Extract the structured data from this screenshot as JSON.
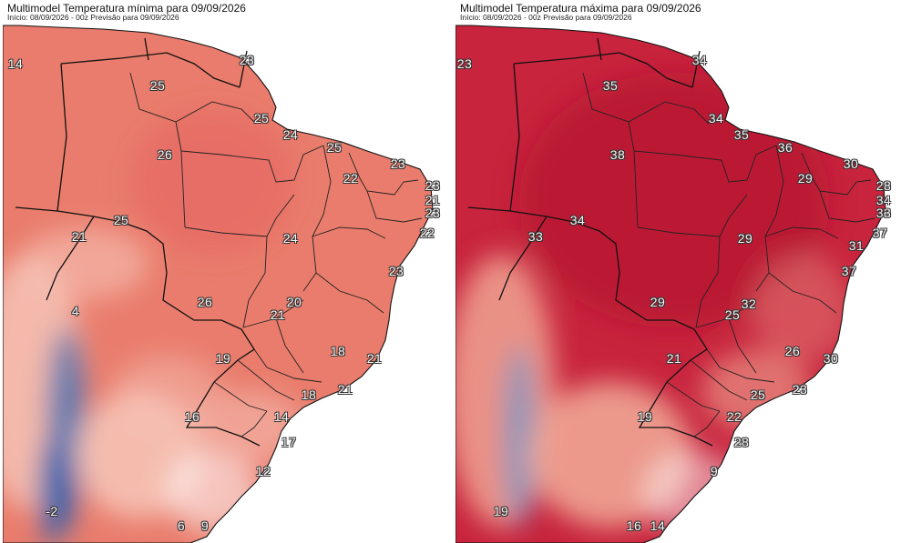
{
  "panels": [
    {
      "id": "minima",
      "title": "Multimodel Temperatura mínima para 09/09/2026",
      "subtitle": "Início: 08/09/2026 - 00z  Previsão para 09/09/2026",
      "colors": {
        "land": "#e97c6c",
        "hot": "#e2575a",
        "cold": "#2a62b0",
        "mild": "#f6c3b6",
        "ocean": "#ffffff"
      },
      "labels": [
        "14",
        "23",
        "25",
        "25",
        "24",
        "25",
        "26",
        "22",
        "23",
        "23",
        "21",
        "23",
        "22",
        "25",
        "21",
        "24",
        "23",
        "26",
        "20",
        "21",
        "18",
        "19",
        "21",
        "18",
        "21",
        "16",
        "14",
        "17",
        "12",
        "-2",
        "6",
        "9",
        "4"
      ]
    },
    {
      "id": "maxima",
      "title": "Multimodel Temperatura máxima para 09/09/2026",
      "subtitle": "Início: 08/09/2026 - 00z  Previsão para 09/09/2026",
      "colors": {
        "land": "#c8243d",
        "hot": "#b3132f",
        "cold": "#6a98cf",
        "mild": "#f0a593",
        "ocean": "#ffffff"
      },
      "labels": [
        "23",
        "34",
        "35",
        "33",
        "34",
        "34",
        "35",
        "36",
        "38",
        "30",
        "29",
        "28",
        "34",
        "33",
        "37",
        "31",
        "29",
        "37",
        "29",
        "32",
        "25",
        "26",
        "30",
        "21",
        "25",
        "23",
        "22",
        "28",
        "19",
        "9",
        "19",
        "16",
        "14"
      ]
    }
  ]
}
